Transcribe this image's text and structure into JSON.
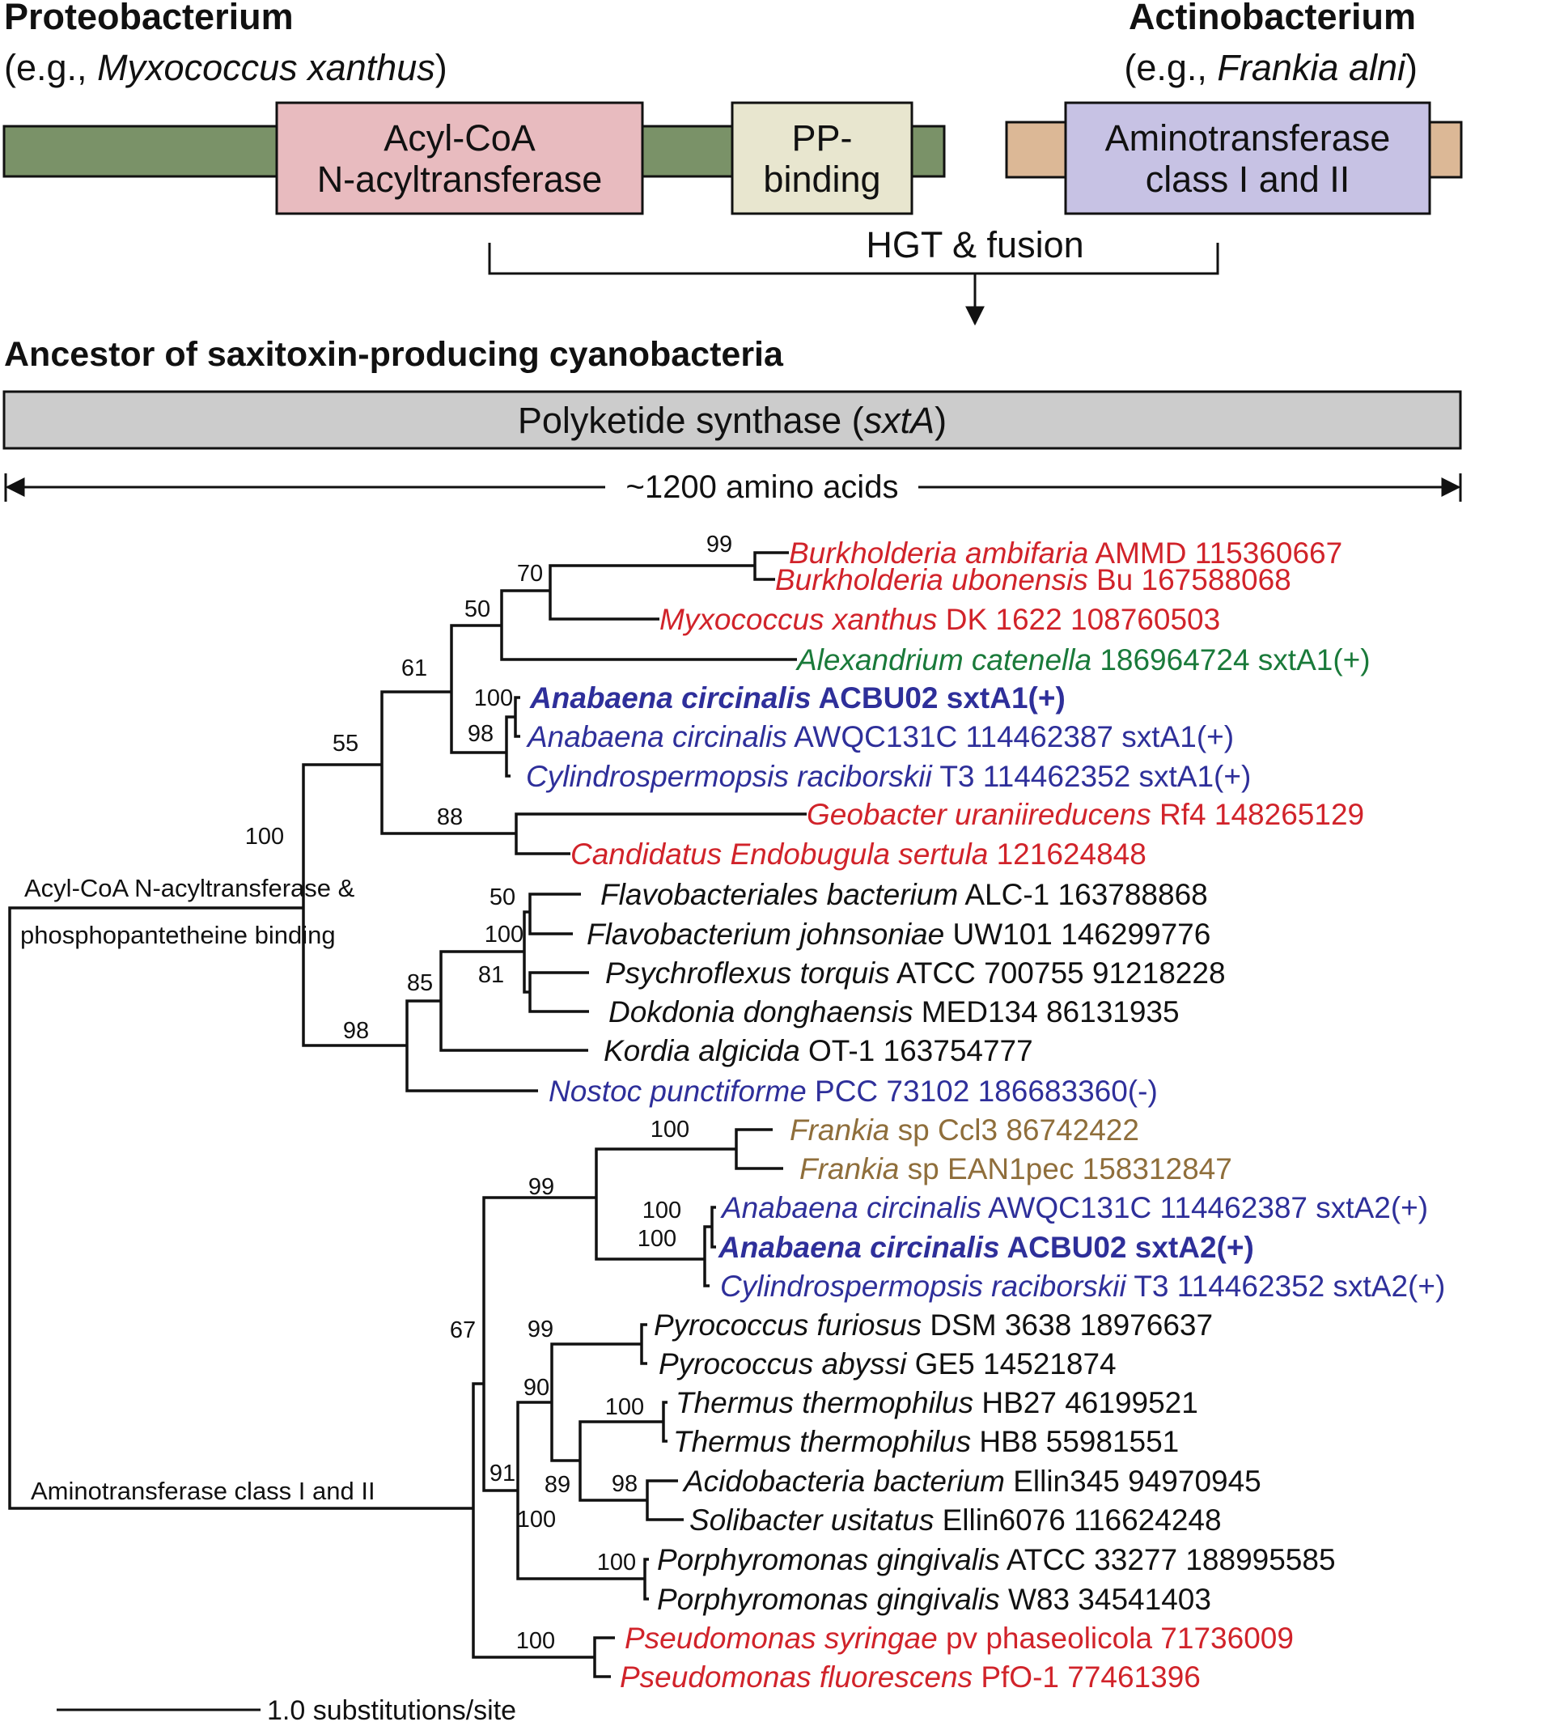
{
  "colors": {
    "red": "#d1232a",
    "green": "#1a7a3a",
    "blue": "#2e2f9a",
    "brown": "#8f6e3b",
    "black": "#111111",
    "prot_bar": "#7a9268",
    "act_bar": "#dcb896",
    "acyl_box": "#e8bbbf",
    "pp_box": "#e8e6cf",
    "amino_box": "#c7c2e4",
    "sxt_bar": "#cccccc"
  },
  "header": {
    "prot_title": "Proteobacterium",
    "prot_eg_pre": "(e.g., ",
    "prot_eg_species": "Myxococcus xanthus",
    "prot_eg_post": ")",
    "act_title": "Actinobacterium",
    "act_eg_pre": "(e.g., ",
    "act_eg_species": "Frankia alni",
    "act_eg_post": ")"
  },
  "domains": {
    "acyl_line1": "Acyl-CoA",
    "acyl_line2": "N-acyltransferase",
    "pp_line1": "PP-",
    "pp_line2": "binding",
    "amino_line1": "Aminotransferase",
    "amino_line2": "class I and II"
  },
  "hgt_label": "HGT & fusion",
  "ancestor_title": "Ancestor of saxitoxin-producing cyanobacteria",
  "sxt": {
    "pre": "Polyketide synthase (",
    "gene": "sxtA",
    "post": ")"
  },
  "length_label": "~1200 amino acids",
  "tree": {
    "clade_label_acyl_line1": "Acyl-CoA N-acyltransferase &",
    "clade_label_acyl_line2": "phosphopantetheine binding",
    "clade_label_amino": "Aminotransferase class I and II",
    "scale_label": "1.0 substitutions/site",
    "bootstrap": [
      "99",
      "70",
      "50",
      "61",
      "100",
      "98",
      "55",
      "88",
      "100",
      "50",
      "100",
      "81",
      "85",
      "98",
      "100",
      "99",
      "100",
      "100",
      "67",
      "99",
      "90",
      "100",
      "98",
      "91",
      "89",
      "100",
      "100",
      "100"
    ],
    "taxa": [
      {
        "italic": "Burkholderia ambifaria",
        "rest": " AMMD 115360667",
        "color": "red",
        "bold": false
      },
      {
        "italic": "Burkholderia ubonensis",
        "rest": " Bu 167588068",
        "color": "red",
        "bold": false
      },
      {
        "italic": "Myxococcus xanthus",
        "rest": " DK 1622 108760503",
        "color": "red",
        "bold": false
      },
      {
        "italic": "Alexandrium catenella",
        "rest": " 186964724 sxtA1(+)",
        "color": "green",
        "bold": false
      },
      {
        "italic": "Anabaena circinalis",
        "rest": " ACBU02 sxtA1(+)",
        "color": "blue",
        "bold": true
      },
      {
        "italic": "Anabaena circinalis",
        "rest": " AWQC131C 114462387 sxtA1(+)",
        "color": "blue",
        "bold": false
      },
      {
        "italic": "Cylindrospermopsis raciborskii",
        "rest": " T3 114462352 sxtA1(+)",
        "color": "blue",
        "bold": false
      },
      {
        "italic": "Geobacter uraniireducens",
        "rest": " Rf4 148265129",
        "color": "red",
        "bold": false
      },
      {
        "italic": "Candidatus Endobugula sertula",
        "rest": " 121624848",
        "color": "red",
        "bold": false
      },
      {
        "italic": "Flavobacteriales bacterium",
        "rest": " ALC-1 163788868",
        "color": "black",
        "bold": false
      },
      {
        "italic": "Flavobacterium johnsoniae",
        "rest": " UW101 146299776",
        "color": "black",
        "bold": false
      },
      {
        "italic": "Psychroflexus torquis",
        "rest": " ATCC 700755 91218228",
        "color": "black",
        "bold": false
      },
      {
        "italic": "Dokdonia donghaensis",
        "rest": " MED134 86131935",
        "color": "black",
        "bold": false
      },
      {
        "italic": "Kordia algicida",
        "rest": " OT-1 163754777",
        "color": "black",
        "bold": false
      },
      {
        "italic": "Nostoc punctiforme",
        "rest": " PCC 73102 186683360(-)",
        "color": "blue",
        "bold": false
      },
      {
        "italic": "Frankia",
        "rest": " sp Ccl3 86742422",
        "color": "brown",
        "bold": false
      },
      {
        "italic": "Frankia",
        "rest": " sp EAN1pec 158312847",
        "color": "brown",
        "bold": false
      },
      {
        "italic": "Anabaena circinalis",
        "rest": " AWQC131C 114462387 sxtA2(+)",
        "color": "blue",
        "bold": false
      },
      {
        "italic": "Anabaena circinalis",
        "rest": " ACBU02 sxtA2(+)",
        "color": "blue",
        "bold": true
      },
      {
        "italic": "Cylindrospermopsis raciborskii",
        "rest": " T3 114462352 sxtA2(+)",
        "color": "blue",
        "bold": false
      },
      {
        "italic": "Pyrococcus furiosus",
        "rest": " DSM 3638 18976637",
        "color": "black",
        "bold": false
      },
      {
        "italic": "Pyrococcus abyssi",
        "rest": " GE5 14521874",
        "color": "black",
        "bold": false
      },
      {
        "italic": "Thermus thermophilus",
        "rest": " HB27 46199521",
        "color": "black",
        "bold": false
      },
      {
        "italic": "Thermus thermophilus",
        "rest": " HB8 55981551",
        "color": "black",
        "bold": false
      },
      {
        "italic": "Acidobacteria bacterium",
        "rest": " Ellin345 94970945",
        "color": "black",
        "bold": false
      },
      {
        "italic": "Solibacter usitatus",
        "rest": " Ellin6076 116624248",
        "color": "black",
        "bold": false
      },
      {
        "italic": "Porphyromonas gingivalis",
        "rest": " ATCC 33277 188995585",
        "color": "black",
        "bold": false
      },
      {
        "italic": "Porphyromonas gingivalis",
        "rest": " W83 34541403",
        "color": "black",
        "bold": false
      },
      {
        "italic": "Pseudomonas syringae",
        "rest": " pv phaseolicola 71736009",
        "color": "red",
        "bold": false
      },
      {
        "italic": "Pseudomonas fluorescens",
        "rest": " PfO-1 77461396",
        "color": "red",
        "bold": false
      }
    ]
  }
}
